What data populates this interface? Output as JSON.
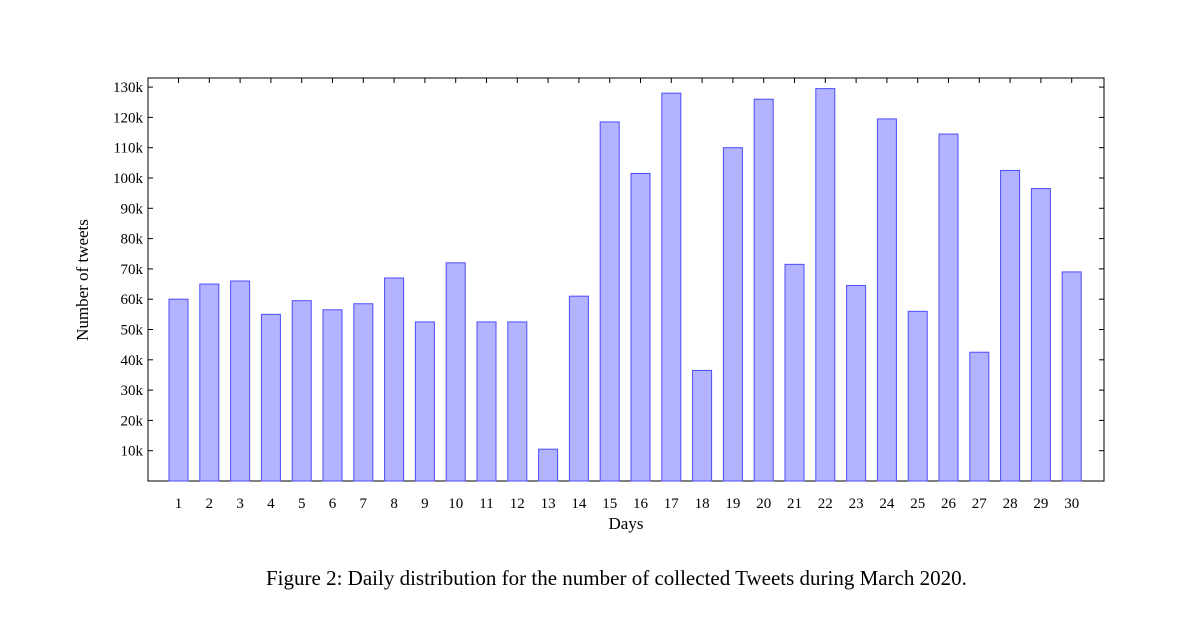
{
  "chart_data": {
    "type": "bar",
    "title": "",
    "xlabel": "Days",
    "ylabel": "Number of tweets",
    "categories": [
      "1",
      "2",
      "3",
      "4",
      "5",
      "6",
      "7",
      "8",
      "9",
      "10",
      "11",
      "12",
      "13",
      "14",
      "15",
      "16",
      "17",
      "18",
      "19",
      "20",
      "21",
      "22",
      "23",
      "24",
      "25",
      "26",
      "27",
      "28",
      "29",
      "30"
    ],
    "values": [
      60000,
      65000,
      66000,
      55000,
      59500,
      56500,
      58500,
      67000,
      52500,
      72000,
      52500,
      52500,
      10500,
      61000,
      118500,
      101500,
      128000,
      36500,
      110000,
      126000,
      71500,
      129500,
      64500,
      119500,
      56000,
      114500,
      42500,
      102500,
      96500,
      69000
    ],
    "ylim": [
      0,
      133000
    ],
    "yticks": [
      10000,
      20000,
      30000,
      40000,
      50000,
      60000,
      70000,
      80000,
      90000,
      100000,
      110000,
      120000,
      130000
    ],
    "ytick_labels": [
      "10k",
      "20k",
      "30k",
      "40k",
      "50k",
      "60k",
      "70k",
      "80k",
      "90k",
      "100k",
      "110k",
      "120k",
      "130k"
    ],
    "bar_fill": "#b3b3ff",
    "bar_stroke": "#4d4dff",
    "grid": false
  },
  "caption": "Figure 2: Daily distribution for the number of collected Tweets during March 2020."
}
